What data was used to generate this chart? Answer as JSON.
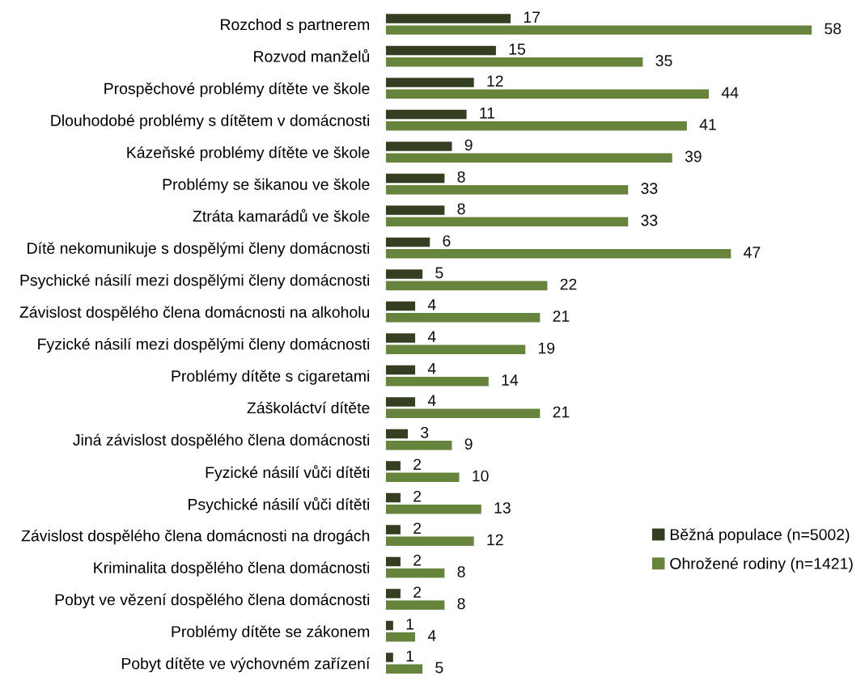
{
  "chart_data": {
    "type": "bar",
    "orientation": "horizontal",
    "categories": [
      "Rozchod s partnerem",
      "Rozvod manželů",
      "Prospěchové problémy dítěte ve škole",
      "Dlouhodobé problémy s dítětem v domácnosti",
      "Kázeňské problémy dítěte ve škole",
      "Problémy se šikanou ve škole",
      "Ztráta kamarádů ve škole",
      "Dítě nekomunikuje s dospělými členy domácnosti",
      "Psychické násilí mezi dospělými členy domácnosti",
      "Závislost dospělého člena domácnosti na alkoholu",
      "Fyzické násilí mezi dospělými členy domácnosti",
      "Problémy dítěte s cigaretami",
      "Záškoláctví dítěte",
      "Jiná závislost dospělého člena domácnosti",
      "Fyzické násilí vůči dítěti",
      "Psychické násilí vůči dítěti",
      "Závislost dospělého člena domácnosti na drogách",
      "Kriminalita dospělého člena domácnosti",
      "Pobyt ve vězení dospělého člena domácnosti",
      "Problémy dítěte se zákonem",
      "Pobyt dítěte ve výchovném zařízení"
    ],
    "series": [
      {
        "name": "Běžná populace (n=5002)",
        "color": "#333f20",
        "values": [
          17,
          15,
          12,
          11,
          9,
          8,
          8,
          6,
          5,
          4,
          4,
          4,
          4,
          3,
          2,
          2,
          2,
          2,
          2,
          1,
          1
        ]
      },
      {
        "name": "Ohrožené rodiny (n=1421)",
        "color": "#66843b",
        "values": [
          58,
          35,
          44,
          41,
          39,
          33,
          33,
          47,
          22,
          21,
          19,
          14,
          21,
          9,
          10,
          13,
          12,
          8,
          8,
          4,
          5
        ]
      }
    ],
    "tick_labels": "y",
    "data_labels": true,
    "legend": "bottom right"
  }
}
